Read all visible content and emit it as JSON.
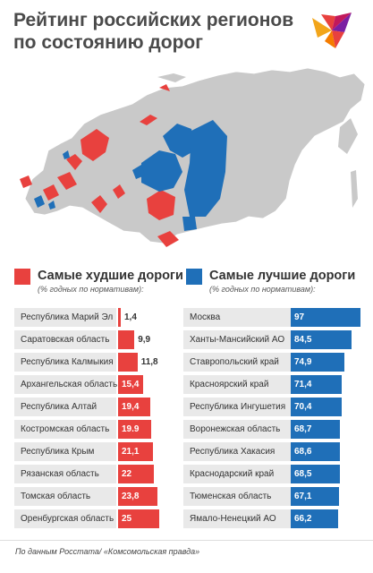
{
  "header": {
    "title_line1": "Рейтинг российских регионов",
    "title_line2": "по состоянию дорог"
  },
  "colors": {
    "worst": "#e8413e",
    "best": "#1f6fb8",
    "label_bg": "#e9e9e9",
    "map_gray": "#c9c9c9"
  },
  "logo": {
    "icon": "bird-logo-icon"
  },
  "legend": {
    "worst_title": "Самые худшие дороги",
    "worst_subtitle": "(% годных по нормативам):",
    "best_title": "Самые лучшие дороги",
    "best_subtitle": "(% годных по нормативам):"
  },
  "chart_data": [
    {
      "type": "bar",
      "title": "Самые худшие дороги",
      "subtitle": "(% годных по нормативам):",
      "categories": [
        "Республика Марий Эл",
        "Саратовская область",
        "Республика Калмыкия",
        "Архангельская область",
        "Республика Алтай",
        "Костромская область",
        "Республика Крым",
        "Рязанская область",
        "Томская область",
        "Оренбургская область"
      ],
      "values": [
        1.4,
        9.9,
        11.8,
        15.4,
        19.4,
        19.9,
        21.1,
        22,
        23.8,
        25
      ],
      "value_labels": [
        "1,4",
        "9,9",
        "11,8",
        "15,4",
        "19,4",
        "19.9",
        "21,1",
        "22",
        "23,8",
        "25"
      ],
      "xlim": [
        0,
        25
      ]
    },
    {
      "type": "bar",
      "title": "Самые лучшие дороги",
      "subtitle": "(% годных по нормативам):",
      "categories": [
        "Москва",
        "Ханты-Мансийский АО",
        "Ставропольский край",
        "Красноярский край",
        "Республика Ингушетия",
        "Воронежская область",
        "Республика Хакасия",
        "Краснодарский край",
        "Тюменская область",
        "Ямало-Ненецкий АО"
      ],
      "values": [
        97,
        84.5,
        74.9,
        71.4,
        70.4,
        68.7,
        68.6,
        68.5,
        67.1,
        66.2
      ],
      "value_labels": [
        "97",
        "84,5",
        "74,9",
        "71,4",
        "70,4",
        "68,7",
        "68,6",
        "68,5",
        "67,1",
        "66,2"
      ],
      "xlim": [
        0,
        97
      ]
    }
  ],
  "footer": {
    "source": "По данным Росстата/ «Комсомольская правда»"
  }
}
